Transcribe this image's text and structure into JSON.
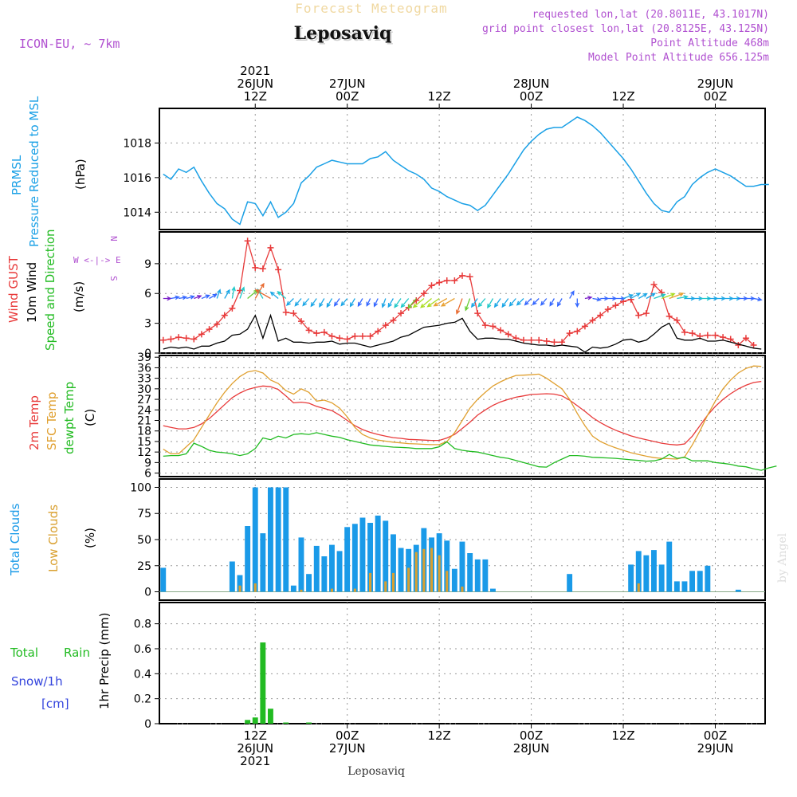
{
  "header": {
    "chart_title": "Forecast Meteogram",
    "location": "Leposaviq",
    "model": "ICON-EU, ~ 7km",
    "requested": "requested lon,lat (20.8011E, 43.1017N)",
    "grid_point": "grid point closest lon,lat (20.8125E, 43.125N)",
    "point_altitude": "Point Altitude 468m",
    "model_altitude": "Model Point Altitude 656.125m",
    "footer_location": "Leposaviq",
    "watermark": "by Angel"
  },
  "time_axis": {
    "top_labels": [
      {
        "t": 12,
        "lines": [
          "2021",
          "26JUN",
          "12Z"
        ]
      },
      {
        "t": 24,
        "lines": [
          "27JUN",
          "00Z"
        ]
      },
      {
        "t": 36,
        "lines": [
          "12Z"
        ]
      },
      {
        "t": 48,
        "lines": [
          "28JUN",
          "00Z"
        ]
      },
      {
        "t": 60,
        "lines": [
          "12Z"
        ]
      },
      {
        "t": 72,
        "lines": [
          "29JUN",
          "00Z"
        ]
      }
    ],
    "bottom_labels": [
      {
        "t": 12,
        "lines": [
          "12Z",
          "26JUN",
          "2021"
        ]
      },
      {
        "t": 24,
        "lines": [
          "00Z",
          "27JUN"
        ]
      },
      {
        "t": 36,
        "lines": [
          "12Z"
        ]
      },
      {
        "t": 48,
        "lines": [
          "00Z",
          "28JUN"
        ]
      },
      {
        "t": 60,
        "lines": [
          "12Z"
        ]
      },
      {
        "t": 72,
        "lines": [
          "00Z",
          "29JUN"
        ]
      }
    ]
  },
  "panel_labels": {
    "pressure": {
      "name1": "PRMSL",
      "name2": "Pressure Reduced to MSL",
      "unit": "(hPa)"
    },
    "wind": {
      "gust": "Wind GUST",
      "wind1": "10m Wind",
      "wind2": "Speed and Direction",
      "unit": "(m/s)",
      "compass_n": "N",
      "compass_s": "S",
      "compass_we": "W <-|-> E"
    },
    "temp": {
      "t2m": "2m Temp",
      "sfc": "SFC Temp",
      "dew": "dewpt Temp",
      "unit": "(C)"
    },
    "clouds": {
      "total": "Total Clouds",
      "low": "Low Clouds",
      "unit": "(%)"
    },
    "precip": {
      "total": "Total",
      "rain": "Rain",
      "snow": "Snow/1h",
      "cm": "[cm]",
      "name": "1hr Precip (mm)"
    }
  },
  "colors": {
    "pressure": "#1aa0e6",
    "gust": "#e83a3a",
    "wind": "#000000",
    "t2m": "#e83a3a",
    "sfc": "#e0a030",
    "dew": "#22bb22",
    "total_clouds": "#1a9ae8",
    "low_clouds": "#d9a030",
    "rain": "#22bb22",
    "snow": "#3344dd",
    "title": "#f0d8a0",
    "info": "#b050d0"
  },
  "chart_data": [
    {
      "type": "line",
      "panel": "pressure",
      "ylabel": "(hPa)",
      "ylim": [
        1013,
        1020
      ],
      "yticks": [
        1014,
        1016,
        1018
      ],
      "x_start": 0,
      "x_step": 1,
      "series": [
        {
          "name": "PRMSL",
          "values": [
            1016.2,
            1015.9,
            1016.5,
            1016.3,
            1016.6,
            1015.8,
            1015.1,
            1014.5,
            1014.2,
            1013.6,
            1013.3,
            1014.6,
            1014.5,
            1013.8,
            1014.6,
            1013.7,
            1014.0,
            1014.5,
            1015.7,
            1016.1,
            1016.6,
            1016.8,
            1017.0,
            1016.9,
            1016.8,
            1016.8,
            1016.8,
            1017.1,
            1017.2,
            1017.5,
            1017.0,
            1016.7,
            1016.4,
            1016.2,
            1015.9,
            1015.4,
            1015.2,
            1014.9,
            1014.7,
            1014.5,
            1014.4,
            1014.1,
            1014.4,
            1015.0,
            1015.6,
            1016.2,
            1016.9,
            1017.6,
            1018.1,
            1018.5,
            1018.8,
            1018.9,
            1018.9,
            1019.2,
            1019.5,
            1019.3,
            1019.0,
            1018.6,
            1018.1,
            1017.6,
            1017.1,
            1016.5,
            1015.8,
            1015.1,
            1014.5,
            1014.1,
            1014.0,
            1014.6,
            1014.9,
            1015.6,
            1016.0,
            1016.3,
            1016.5,
            1016.3,
            1016.1,
            1015.8,
            1015.5,
            1015.5,
            1015.6,
            1015.6
          ]
        }
      ]
    },
    {
      "type": "line",
      "panel": "wind",
      "ylabel": "(m/s)",
      "ylim": [
        0,
        12.2
      ],
      "yticks": [
        0,
        3,
        6,
        9
      ],
      "x_start": 0,
      "x_step": 1,
      "series": [
        {
          "name": "Wind GUST",
          "values": [
            1.3,
            1.4,
            1.6,
            1.5,
            1.4,
            1.9,
            2.4,
            2.9,
            3.8,
            4.5,
            6.3,
            11.3,
            8.6,
            8.5,
            10.6,
            8.4,
            4.1,
            4.0,
            3.2,
            2.3,
            2.0,
            2.1,
            1.7,
            1.5,
            1.4,
            1.7,
            1.7,
            1.7,
            2.2,
            2.8,
            3.3,
            4.0,
            4.6,
            5.3,
            6.0,
            6.8,
            7.1,
            7.3,
            7.3,
            7.8,
            7.7,
            4.0,
            2.8,
            2.7,
            2.3,
            1.9,
            1.5,
            1.3,
            1.3,
            1.3,
            1.2,
            1.1,
            1.1,
            2.0,
            2.2,
            2.7,
            3.3,
            3.8,
            4.4,
            4.8,
            5.2,
            5.4,
            3.8,
            4.0,
            6.9,
            6.1,
            3.7,
            3.3,
            2.1,
            2.0,
            1.7,
            1.8,
            1.8,
            1.6,
            1.4,
            0.8,
            1.5,
            0.8
          ]
        },
        {
          "name": "10m Wind",
          "values": [
            0.4,
            0.6,
            0.5,
            0.6,
            0.4,
            0.7,
            0.7,
            1.0,
            1.2,
            1.8,
            1.9,
            2.4,
            3.8,
            1.5,
            3.8,
            1.2,
            1.5,
            1.1,
            1.1,
            1.0,
            1.1,
            1.1,
            1.2,
            0.9,
            1.0,
            1.0,
            0.8,
            0.6,
            0.8,
            1.0,
            1.2,
            1.6,
            1.8,
            2.2,
            2.6,
            2.7,
            2.8,
            3.0,
            3.1,
            3.5,
            2.2,
            1.4,
            1.5,
            1.5,
            1.4,
            1.4,
            1.2,
            1.0,
            0.9,
            0.8,
            0.8,
            0.7,
            0.8,
            0.7,
            0.6,
            0.1,
            0.6,
            0.5,
            0.6,
            0.9,
            1.3,
            1.4,
            1.1,
            1.3,
            1.9,
            2.6,
            3.0,
            1.5,
            1.3,
            1.3,
            1.5,
            1.2,
            1.2,
            1.3,
            1.1,
            0.9,
            0.7,
            0.5,
            0.4
          ]
        }
      ],
      "wind_dir_deg": [
        270,
        260,
        260,
        255,
        250,
        248,
        240,
        200,
        210,
        190,
        200,
        230,
        210,
        150,
        120,
        130,
        130,
        45,
        40,
        40,
        35,
        30,
        30,
        35,
        40,
        30,
        30,
        25,
        25,
        20,
        30,
        35,
        40,
        40,
        50,
        50,
        55,
        60,
        60,
        20,
        20,
        35,
        40,
        30,
        35,
        35,
        40,
        45,
        45,
        45,
        40,
        30,
        30,
        210,
        0,
        260,
        280,
        270,
        270,
        270,
        250,
        240,
        240,
        240,
        250,
        250,
        250,
        260,
        270,
        270,
        270,
        270,
        270,
        270,
        270,
        270,
        270,
        280
      ]
    },
    {
      "type": "line",
      "panel": "temperature",
      "ylabel": "(C)",
      "ylim": [
        5,
        39.5
      ],
      "yticks": [
        6,
        9,
        12,
        15,
        18,
        21,
        24,
        27,
        30,
        33,
        36,
        39
      ],
      "x_start": 0,
      "x_step": 1,
      "series": [
        {
          "name": "2m Temp",
          "values": [
            19.5,
            19.0,
            18.6,
            18.6,
            19.0,
            20.0,
            21.5,
            23.5,
            25.5,
            27.5,
            28.8,
            29.8,
            30.4,
            30.8,
            30.6,
            29.8,
            28.0,
            26.0,
            26.2,
            25.9,
            25.0,
            24.4,
            23.8,
            22.5,
            21.0,
            19.5,
            18.4,
            17.6,
            17.0,
            16.5,
            16.1,
            15.9,
            15.6,
            15.5,
            15.4,
            15.3,
            15.3,
            16.0,
            17.0,
            18.7,
            20.5,
            22.5,
            24.0,
            25.3,
            26.3,
            27.0,
            27.6,
            28.0,
            28.4,
            28.5,
            28.6,
            28.5,
            28.0,
            26.8,
            25.2,
            23.6,
            21.8,
            20.4,
            19.2,
            18.2,
            17.4,
            16.6,
            16.0,
            15.5,
            15.0,
            14.5,
            14.2,
            14.0,
            14.3,
            16.5,
            19.5,
            22.5,
            25.0,
            27.0,
            28.6,
            30.0,
            31.0,
            31.8,
            32.1
          ]
        },
        {
          "name": "SFC Temp",
          "values": [
            12.8,
            11.5,
            11.5,
            13.5,
            15.5,
            19.0,
            22.5,
            26.0,
            29.0,
            31.5,
            33.5,
            34.8,
            35.2,
            34.5,
            32.5,
            31.5,
            29.5,
            28.5,
            30.0,
            29.0,
            26.5,
            26.8,
            26.0,
            24.5,
            22.0,
            19.0,
            17.0,
            16.0,
            15.4,
            15.1,
            14.8,
            14.6,
            14.4,
            14.3,
            14.2,
            14.1,
            14.1,
            15.0,
            17.5,
            21.0,
            24.5,
            27.0,
            29.0,
            30.8,
            32.0,
            33.0,
            33.8,
            33.9,
            34.0,
            34.2,
            33.0,
            31.5,
            30.0,
            27.0,
            23.0,
            19.5,
            16.5,
            15.0,
            14.0,
            13.2,
            12.5,
            11.8,
            11.3,
            10.8,
            10.4,
            10.2,
            10.1,
            10.0,
            10.6,
            14.0,
            18.0,
            22.5,
            26.5,
            30.0,
            32.5,
            34.5,
            35.8,
            36.5,
            36.4
          ]
        },
        {
          "name": "dewpt Temp",
          "values": [
            10.8,
            11.0,
            11.0,
            11.5,
            14.5,
            13.6,
            12.5,
            12.0,
            11.8,
            11.5,
            11.0,
            11.5,
            13.0,
            16.0,
            15.5,
            16.5,
            16.0,
            17.0,
            17.2,
            17.0,
            17.5,
            17.0,
            16.5,
            16.2,
            15.5,
            15.0,
            14.5,
            14.0,
            13.8,
            13.6,
            13.4,
            13.3,
            13.2,
            13.0,
            13.0,
            13.0,
            13.5,
            14.9,
            13.0,
            12.5,
            12.2,
            12.0,
            11.5,
            11.0,
            10.5,
            10.2,
            9.6,
            9.0,
            8.4,
            7.8,
            7.7,
            9.0,
            10.0,
            11.0,
            11.0,
            10.8,
            10.5,
            10.4,
            10.3,
            10.2,
            10.0,
            9.8,
            9.6,
            9.4,
            9.5,
            10.0,
            11.3,
            10.2,
            10.5,
            9.5,
            9.5,
            9.5,
            9.0,
            8.8,
            8.5,
            8.0,
            7.8,
            7.2,
            6.8,
            7.5,
            8.0
          ]
        }
      ]
    },
    {
      "type": "bar",
      "panel": "clouds",
      "ylabel": "(%)",
      "ylim": [
        -8,
        108
      ],
      "yticks": [
        0,
        25,
        50,
        75,
        100
      ],
      "x_start": 0,
      "x_step": 1,
      "series": [
        {
          "name": "Total Clouds",
          "values": [
            23,
            0,
            0,
            0,
            0,
            0,
            0,
            0,
            0,
            29,
            16,
            63,
            100,
            56,
            100,
            100,
            100,
            6,
            52,
            17,
            44,
            34,
            45,
            39,
            62,
            65,
            71,
            66,
            73,
            68,
            55,
            42,
            41,
            45,
            61,
            52,
            56,
            49,
            22,
            48,
            37,
            31,
            31,
            3,
            0,
            0,
            0,
            0,
            0,
            0,
            0,
            0,
            0,
            17,
            0,
            0,
            0,
            0,
            0,
            0,
            0,
            26,
            39,
            35,
            40,
            26,
            48,
            10,
            10,
            20,
            20,
            25,
            0,
            0,
            0,
            2,
            0,
            0,
            0,
            0
          ]
        },
        {
          "name": "Low Clouds",
          "values": [
            0,
            0,
            0,
            0,
            0,
            0,
            0,
            0,
            0,
            0,
            6,
            0,
            8,
            0,
            0,
            0,
            0,
            0,
            2,
            0,
            0,
            0,
            3,
            0,
            0,
            3,
            0,
            18,
            0,
            10,
            18,
            0,
            23,
            38,
            41,
            42,
            35,
            20,
            0,
            5,
            0,
            0,
            0,
            0,
            0,
            0,
            0,
            0,
            0,
            0,
            0,
            0,
            0,
            0,
            0,
            0,
            0,
            0,
            0,
            0,
            0,
            0,
            8,
            0,
            0,
            0,
            0,
            0,
            0,
            0,
            0,
            0,
            0,
            0,
            0,
            0,
            0,
            0,
            0,
            0
          ]
        }
      ]
    },
    {
      "type": "bar",
      "panel": "precipitation",
      "ylabel": "1hr Precip (mm)",
      "ylim": [
        0,
        0.97
      ],
      "yticks": [
        0,
        0.2,
        0.4,
        0.6,
        0.8
      ],
      "x_start": 0,
      "x_step": 1,
      "series": [
        {
          "name": "Rain",
          "values": [
            0,
            0,
            0,
            0,
            0,
            0,
            0,
            0,
            0,
            0,
            0,
            0.03,
            0.05,
            0.65,
            0.12,
            0,
            0.005,
            0,
            0,
            0.005,
            0,
            0,
            0,
            0,
            0,
            0,
            0,
            0,
            0,
            0,
            0,
            0,
            0,
            0,
            0,
            0,
            0,
            0,
            0,
            0,
            0,
            0,
            0,
            0,
            0,
            0,
            0,
            0,
            0,
            0,
            0,
            0,
            0,
            0,
            0,
            0,
            0,
            0,
            0,
            0,
            0,
            0,
            0,
            0,
            0,
            0,
            0,
            0,
            0,
            0,
            0,
            0,
            0,
            0,
            0,
            0,
            0,
            0,
            0,
            0
          ]
        }
      ]
    }
  ]
}
